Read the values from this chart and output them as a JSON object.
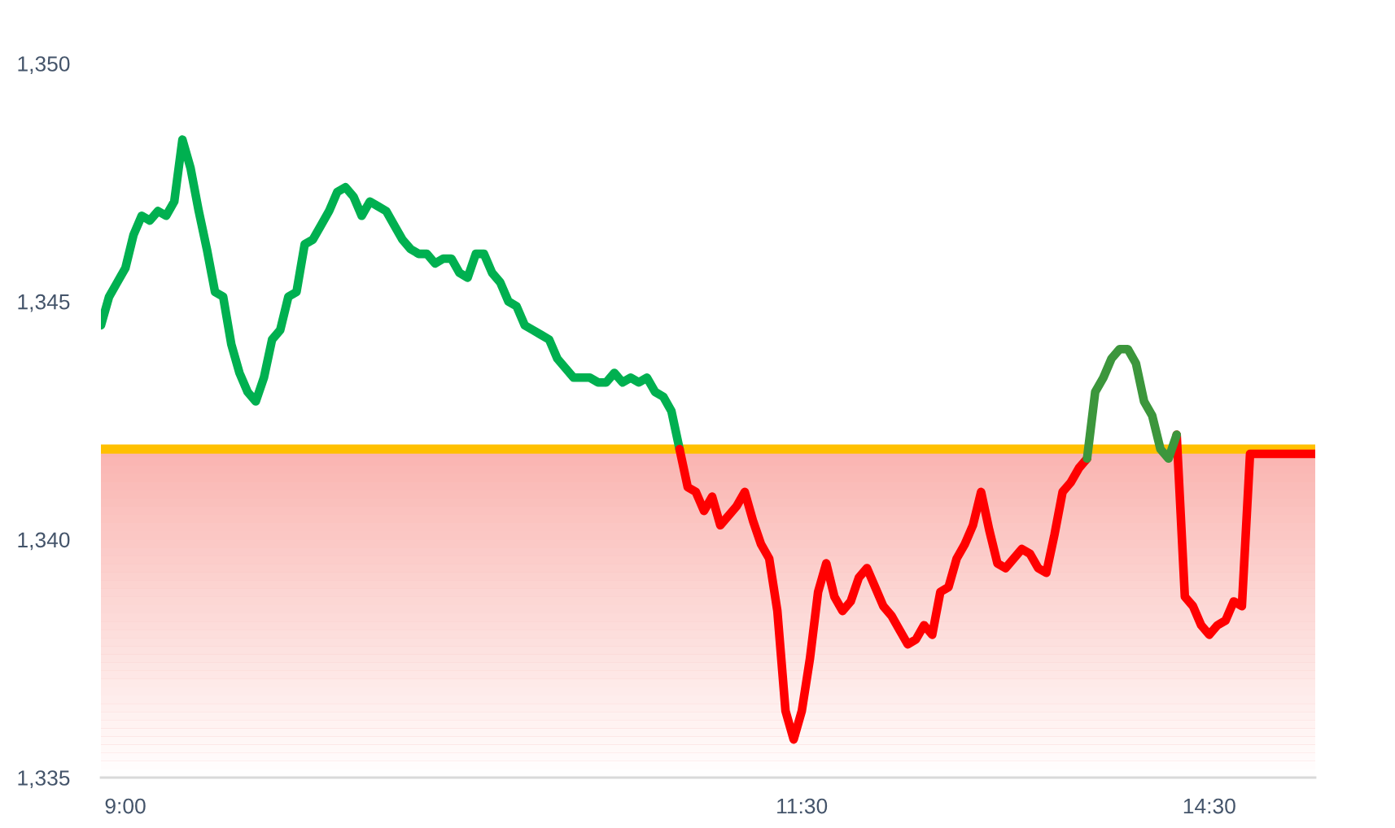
{
  "chart_data": {
    "type": "line",
    "categories": [
      null,
      null,
      null,
      "9:00",
      null,
      null,
      null,
      null,
      null,
      null,
      null,
      null,
      null,
      null,
      null,
      null,
      null,
      null,
      null,
      null,
      null,
      null,
      null,
      null,
      null,
      null,
      null,
      null,
      null,
      null,
      null,
      null,
      null,
      null,
      null,
      null,
      null,
      null,
      null,
      null,
      null,
      null,
      null,
      null,
      null,
      null,
      null,
      null,
      null,
      null,
      null,
      null,
      null,
      null,
      null,
      null,
      null,
      null,
      null,
      null,
      null,
      null,
      null,
      null,
      null,
      null,
      null,
      null,
      null,
      null,
      null,
      null,
      null,
      null,
      null,
      null,
      null,
      null,
      null,
      null,
      null,
      null,
      null,
      null,
      null,
      null,
      "11:30",
      null,
      null,
      null,
      null,
      null,
      null,
      null,
      null,
      null,
      null,
      null,
      null,
      null,
      null,
      null,
      null,
      null,
      null,
      null,
      null,
      null,
      null,
      null,
      null,
      null,
      null,
      null,
      null,
      null,
      null,
      null,
      null,
      null,
      null,
      null,
      null,
      null,
      null,
      null,
      null,
      null,
      null,
      null,
      null,
      null,
      null,
      null,
      null,
      null,
      "14:30",
      null,
      null,
      null,
      null,
      null,
      null,
      null,
      null,
      null,
      null,
      null,
      null,
      null
    ],
    "series": [
      {
        "color": "#00b050",
        "values": [
          1344.5,
          1345.1,
          1345.4,
          1345.7,
          1346.4,
          1346.8,
          1346.7,
          1346.9,
          1346.8,
          1347.1,
          1348.4,
          1347.8,
          1346.9,
          1346.1,
          1345.2,
          1345.1,
          1344.1,
          1343.5,
          1343.1,
          1342.9,
          1343.4,
          1344.2,
          1344.4,
          1345.1,
          1345.2,
          1346.2,
          1346.3,
          1346.6,
          1346.9,
          1347.3,
          1347.4,
          1347.2,
          1346.8,
          1347.1,
          1347.0,
          1346.9,
          1346.6,
          1346.3,
          1346.1,
          1346.0,
          1346.0,
          1345.8,
          1345.9,
          1345.9,
          1345.6,
          1345.5,
          1346.0,
          1346.0,
          1345.6,
          1345.4,
          1345.0,
          1344.9,
          1344.5,
          1344.4,
          1344.3,
          1344.2,
          1343.8,
          1343.6,
          1343.4,
          1343.4,
          1343.4,
          1343.3,
          1343.3,
          1343.5,
          1343.3,
          1343.4,
          1343.3,
          1343.4,
          1343.1,
          1343.0,
          1342.7,
          1341.9,
          null,
          null,
          null,
          null,
          null,
          null,
          null,
          null,
          null,
          null,
          null,
          null,
          null,
          null,
          null,
          null,
          null,
          null,
          null,
          null,
          null,
          null,
          null,
          null,
          null,
          null,
          null,
          null,
          null,
          null,
          null,
          null,
          null,
          null,
          null,
          null,
          null,
          null,
          null,
          null,
          null,
          null,
          null,
          null,
          null,
          null,
          null,
          null,
          null,
          null,
          null,
          null,
          null,
          null,
          null,
          null,
          null,
          null,
          null,
          null,
          null,
          null,
          null,
          null,
          null,
          null,
          null,
          null,
          null,
          null,
          null,
          null,
          null,
          null,
          null,
          null,
          null,
          null
        ]
      },
      {
        "color": "#ff0000",
        "values": [
          null,
          null,
          null,
          null,
          null,
          null,
          null,
          null,
          null,
          null,
          null,
          null,
          null,
          null,
          null,
          null,
          null,
          null,
          null,
          null,
          null,
          null,
          null,
          null,
          null,
          null,
          null,
          null,
          null,
          null,
          null,
          null,
          null,
          null,
          null,
          null,
          null,
          null,
          null,
          null,
          null,
          null,
          null,
          null,
          null,
          null,
          null,
          null,
          null,
          null,
          null,
          null,
          null,
          null,
          null,
          null,
          null,
          null,
          null,
          null,
          null,
          null,
          null,
          null,
          null,
          null,
          null,
          null,
          null,
          null,
          null,
          1341.9,
          1341.1,
          1341.0,
          1340.6,
          1340.9,
          1340.3,
          1340.5,
          1340.7,
          1341.0,
          1340.4,
          1339.9,
          1339.6,
          1338.5,
          1336.4,
          1335.8,
          1336.4,
          1337.5,
          1338.9,
          1339.5,
          1338.8,
          1338.5,
          1338.7,
          1339.2,
          1339.4,
          1339.0,
          1338.6,
          1338.4,
          1338.1,
          1337.8,
          1337.9,
          1338.2,
          1338.0,
          1338.9,
          1339.0,
          1339.6,
          1339.9,
          1340.3,
          1341.0,
          1340.2,
          1339.5,
          1339.4,
          1339.6,
          1339.8,
          1339.7,
          1339.4,
          1339.3,
          1340.1,
          1341.0,
          1341.2,
          1341.5,
          1341.7,
          null,
          null,
          null,
          null,
          null,
          null,
          null,
          null,
          null,
          null,
          1342.2,
          1338.8,
          1338.6,
          1338.2,
          1338.0,
          1338.2,
          1338.3,
          1338.7,
          1338.6,
          1341.8,
          1341.8,
          1341.8,
          1341.8,
          1341.8,
          1341.8,
          1341.8,
          1341.8,
          1341.8
        ]
      },
      {
        "color": "#3c963c",
        "values": [
          null,
          null,
          null,
          null,
          null,
          null,
          null,
          null,
          null,
          null,
          null,
          null,
          null,
          null,
          null,
          null,
          null,
          null,
          null,
          null,
          null,
          null,
          null,
          null,
          null,
          null,
          null,
          null,
          null,
          null,
          null,
          null,
          null,
          null,
          null,
          null,
          null,
          null,
          null,
          null,
          null,
          null,
          null,
          null,
          null,
          null,
          null,
          null,
          null,
          null,
          null,
          null,
          null,
          null,
          null,
          null,
          null,
          null,
          null,
          null,
          null,
          null,
          null,
          null,
          null,
          null,
          null,
          null,
          null,
          null,
          null,
          null,
          null,
          null,
          null,
          null,
          null,
          null,
          null,
          null,
          null,
          null,
          null,
          null,
          null,
          null,
          null,
          null,
          null,
          null,
          null,
          null,
          null,
          null,
          null,
          null,
          null,
          null,
          null,
          null,
          null,
          null,
          null,
          null,
          null,
          null,
          null,
          null,
          null,
          null,
          null,
          null,
          null,
          null,
          null,
          null,
          null,
          null,
          null,
          null,
          null,
          1341.7,
          1343.1,
          1343.4,
          1343.8,
          1344.0,
          1344.0,
          1343.7,
          1342.9,
          1342.6,
          1341.9,
          1341.7,
          1342.2,
          null,
          null,
          null,
          null,
          null,
          null,
          null,
          null,
          null,
          null,
          null,
          null,
          null,
          null,
          null,
          null,
          null
        ]
      }
    ],
    "ylim": [
      1335,
      1350
    ],
    "yticks": [
      {
        "value": 1335,
        "label": "1,335"
      },
      {
        "value": 1340,
        "label": "1,340"
      },
      {
        "value": 1345,
        "label": "1,345"
      },
      {
        "value": 1350,
        "label": "1,350"
      }
    ],
    "ref_lines": [
      {
        "axis": "y",
        "value": 1341.9,
        "color": "#ffc000"
      }
    ],
    "bands": [
      {
        "axis": "y",
        "from": 1335,
        "to": 1341.9,
        "color": "#fab4b0"
      }
    ]
  }
}
